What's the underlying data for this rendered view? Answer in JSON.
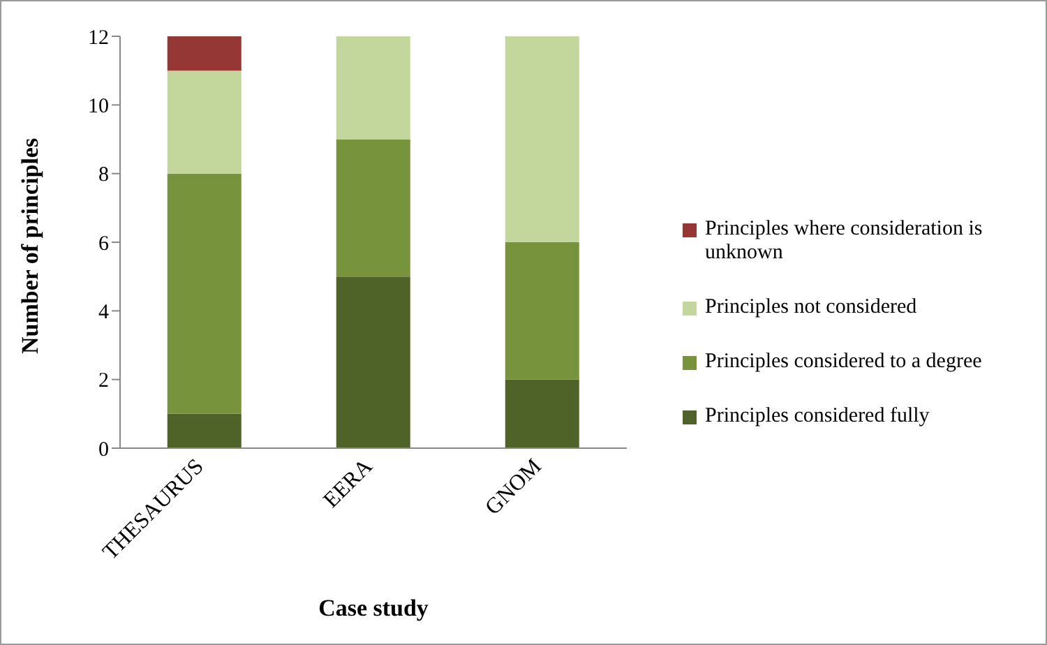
{
  "chart_data": {
    "type": "bar",
    "stacked": true,
    "xlabel": "Case study",
    "ylabel": "Number of principles",
    "categories": [
      "THESAURUS",
      "EERA",
      "GNOM"
    ],
    "series": [
      {
        "name": "Principles considered fully",
        "color": "#4f6228",
        "values": [
          1,
          5,
          2
        ]
      },
      {
        "name": "Principles considered to a degree",
        "color": "#77933c",
        "values": [
          7,
          4,
          4
        ]
      },
      {
        "name": "Principles not considered",
        "color": "#c3d69b",
        "values": [
          3,
          3,
          6
        ]
      },
      {
        "name": "Principles where consideration is unknown",
        "color": "#953735",
        "values": [
          1,
          0,
          0
        ]
      }
    ],
    "ylim": [
      0,
      12
    ],
    "yticks": [
      0,
      2,
      4,
      6,
      8,
      10,
      12
    ],
    "grid": false,
    "legend": "right"
  }
}
